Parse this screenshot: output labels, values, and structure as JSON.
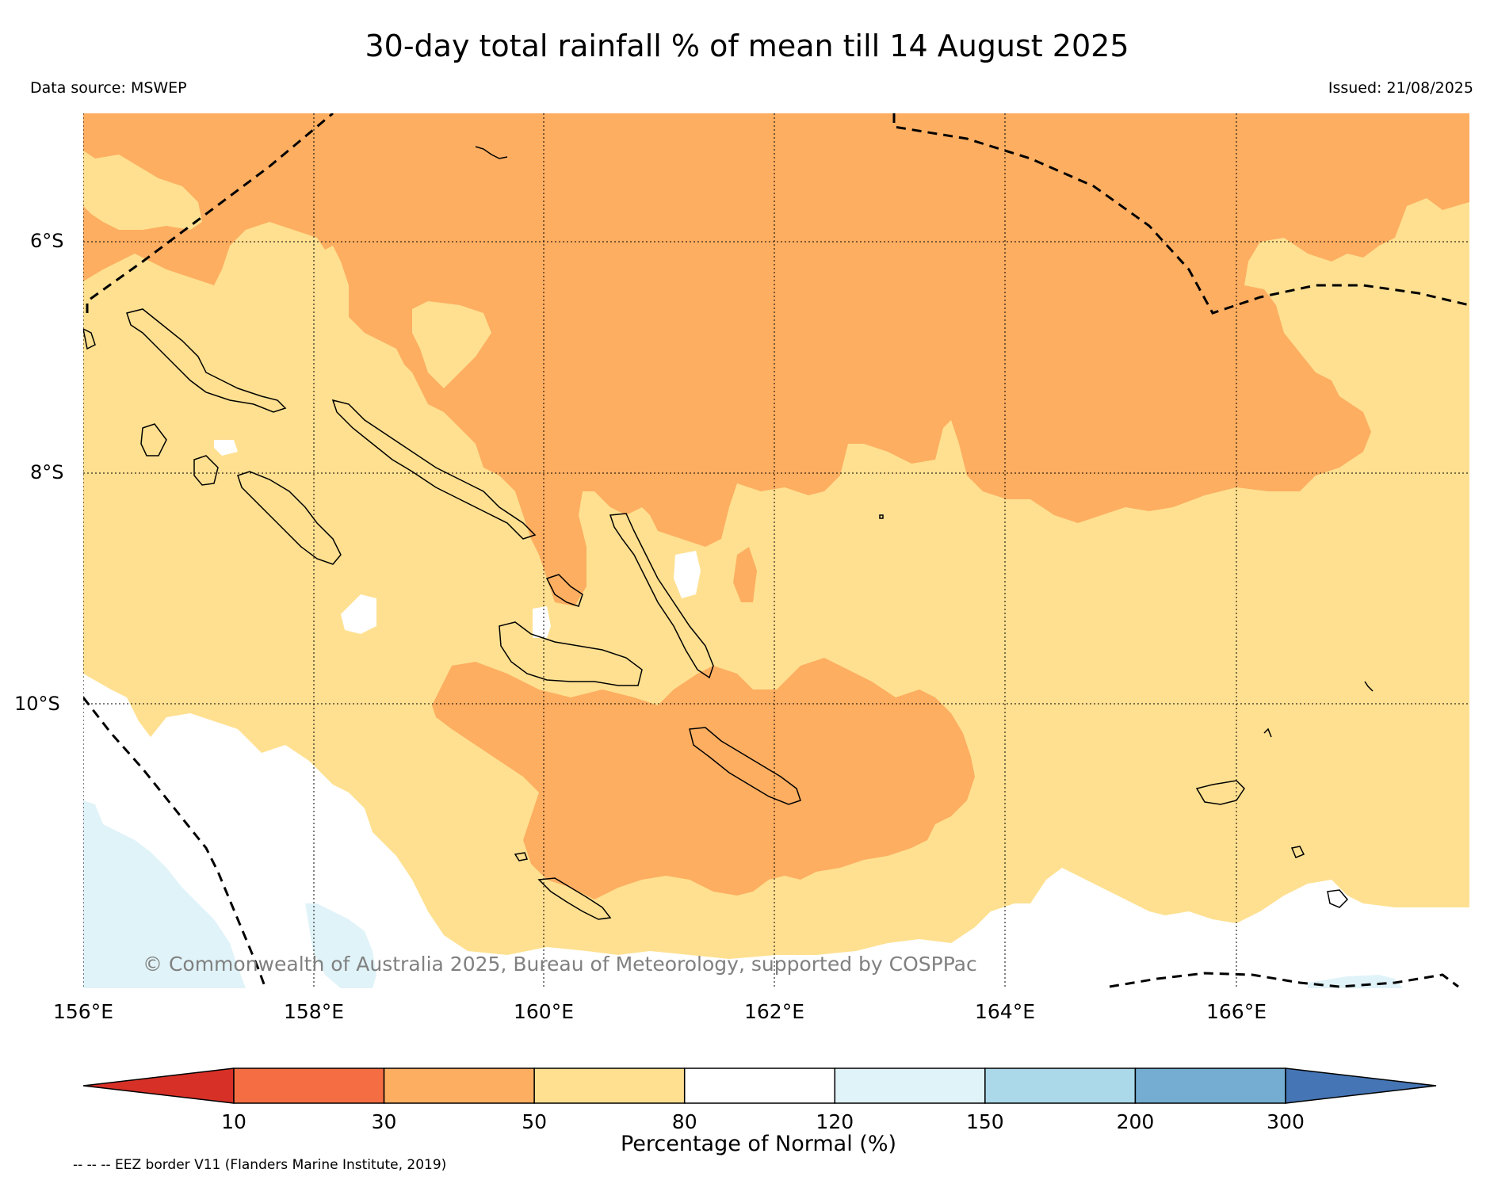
{
  "title": "30-day total rainfall % of mean till 14 August 2025",
  "data_source": "Data source: MSWEP",
  "issued": "Issued: 21/08/2025",
  "copyright": "© Commonwealth of Australia 2025, Bureau of Meteorology, supported by COSPPac",
  "footnote": "-- -- -- EEZ border V11 (Flanders Marine Institute, 2019)",
  "map": {
    "lat_ticks": [
      "6°S",
      "8°S",
      "10°S"
    ],
    "lon_ticks": [
      "156°E",
      "158°E",
      "160°E",
      "162°E",
      "164°E",
      "166°E"
    ],
    "lon_range": [
      156,
      168
    ],
    "lat_range": [
      -4.9,
      -12.4
    ]
  },
  "colorbar": {
    "title": "Percentage of Normal (%)",
    "tick_labels": [
      "10",
      "30",
      "50",
      "80",
      "120",
      "150",
      "200",
      "300"
    ],
    "colors": [
      "#d73027",
      "#f46d43",
      "#fdae61",
      "#fee090",
      "#ffffff",
      "#e0f3f8",
      "#abd9e9",
      "#74add1",
      "#4575b4"
    ],
    "extend": "both"
  },
  "colors": {
    "below_30_50": "#fdae61",
    "between_50_80": "#fee090",
    "between_80_120": "#ffffff",
    "between_120_150": "#e0f3f8",
    "coastline": "#000000",
    "eez_border": "#000000"
  }
}
